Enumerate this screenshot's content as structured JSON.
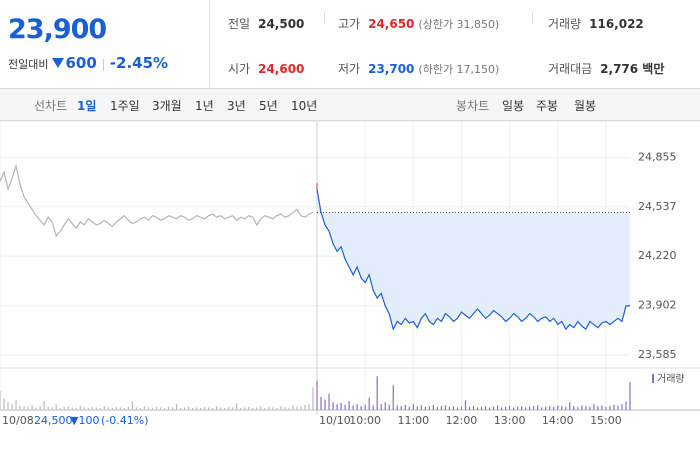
{
  "header": {
    "price": "23,900",
    "change_label": "전일대비",
    "change": "600",
    "change_pct": "-2.45%",
    "stats": [
      {
        "label": "전일",
        "value": "24,500"
      },
      {
        "label": "고가",
        "value": "24,650",
        "note": "(상한가 31,850)"
      },
      {
        "label": "거래량",
        "value": "116,022"
      },
      {
        "label": "시가",
        "value": "24,600"
      },
      {
        "label": "저가",
        "value": "23,700",
        "note": "(하한가 17,150)"
      },
      {
        "label": "거래대금",
        "value": "2,776 백만"
      }
    ]
  },
  "tabs": {
    "line_label": "선차트",
    "line": [
      "1일",
      "1주일",
      "3개월",
      "1년",
      "3년",
      "5년",
      "10년"
    ],
    "candle_label": "봉차트",
    "candle": [
      "일봉",
      "주봉",
      "월봉"
    ]
  },
  "chart_data": {
    "type": "line",
    "ylim": [
      23520,
      25050
    ],
    "yticks": [
      {
        "value": 24855,
        "label": "24,855"
      },
      {
        "value": 24537,
        "label": "24,537"
      },
      {
        "value": 24220,
        "label": "24,220"
      },
      {
        "value": 23902,
        "label": "23,902"
      },
      {
        "value": 23585,
        "label": "23,585"
      }
    ],
    "xlim": [
      0,
      157
    ],
    "xticks": [
      {
        "value": 0,
        "label": "10/08"
      },
      {
        "value": 79,
        "label": "10/10"
      },
      {
        "value": 91,
        "label": "10:00"
      },
      {
        "value": 103,
        "label": "11:00"
      },
      {
        "value": 115,
        "label": "12:00"
      },
      {
        "value": 127,
        "label": "13:00"
      },
      {
        "value": 139,
        "label": "14:00"
      },
      {
        "value": 151,
        "label": "15:00"
      }
    ],
    "reference": 24500,
    "prev_day": {
      "color": "#b4b4b4",
      "start": 0,
      "values": [
        24700,
        24760,
        24650,
        24720,
        24800,
        24680,
        24600,
        24560,
        24520,
        24480,
        24450,
        24420,
        24470,
        24440,
        24350,
        24380,
        24420,
        24460,
        24430,
        24400,
        24440,
        24420,
        24460,
        24440,
        24420,
        24430,
        24450,
        24430,
        24410,
        24440,
        24460,
        24480,
        24450,
        24430,
        24440,
        24460,
        24470,
        24450,
        24480,
        24470,
        24450,
        24460,
        24480,
        24470,
        24460,
        24480,
        24470,
        24450,
        24460,
        24480,
        24470,
        24460,
        24480,
        24490,
        24470,
        24480,
        24460,
        24470,
        24480,
        24450,
        24470,
        24460,
        24480,
        24470,
        24420,
        24460,
        24480,
        24470,
        24460,
        24480,
        24490,
        24470,
        24480,
        24500,
        24520,
        24480,
        24470,
        24490,
        24500
      ]
    },
    "today": {
      "color": "#1a5fd6",
      "fill": "#e4edfb",
      "start": 79,
      "values": [
        24650,
        24500,
        24420,
        24380,
        24300,
        24250,
        24280,
        24200,
        24150,
        24100,
        24150,
        24080,
        24050,
        24100,
        24000,
        23950,
        23980,
        23900,
        23850,
        23750,
        23800,
        23780,
        23820,
        23790,
        23800,
        23760,
        23820,
        23850,
        23800,
        23780,
        23820,
        23800,
        23850,
        23830,
        23800,
        23820,
        23860,
        23840,
        23820,
        23850,
        23880,
        23850,
        23820,
        23840,
        23870,
        23850,
        23830,
        23800,
        23820,
        23850,
        23830,
        23800,
        23820,
        23850,
        23830,
        23800,
        23820,
        23830,
        23800,
        23820,
        23780,
        23800,
        23750,
        23780,
        23760,
        23800,
        23770,
        23750,
        23800,
        23780,
        23760,
        23790,
        23800,
        23780,
        23800,
        23820,
        23800,
        23900,
        23900
      ]
    },
    "volume": {
      "name": "거래량",
      "color": "#8c6cc9",
      "prev_color": "#b9b9b9",
      "vlim": [
        0,
        6000
      ],
      "prev_day": [
        3000,
        1800,
        1200,
        900,
        1500,
        700,
        600,
        500,
        800,
        400,
        600,
        1400,
        500,
        400,
        900,
        300,
        500,
        600,
        400,
        300,
        700,
        400,
        300,
        500,
        400,
        300,
        600,
        400,
        300,
        500,
        400,
        300,
        500,
        1300,
        400,
        300,
        600,
        400,
        300,
        500,
        400,
        300,
        500,
        400,
        900,
        300,
        400,
        500,
        300,
        400,
        300,
        500,
        400,
        300,
        600,
        400,
        300,
        500,
        400,
        1100,
        300,
        400,
        500,
        300,
        400,
        600,
        300,
        500,
        400,
        300,
        600,
        500,
        400,
        700,
        500,
        600,
        800,
        900,
        3500
      ],
      "today": [
        4500,
        2000,
        1600,
        2500,
        1200,
        900,
        1100,
        800,
        1400,
        700,
        900,
        600,
        800,
        1900,
        700,
        5200,
        900,
        1200,
        800,
        3800,
        700,
        600,
        800,
        500,
        900,
        600,
        700,
        500,
        600,
        800,
        500,
        600,
        700,
        500,
        600,
        400,
        500,
        1500,
        500,
        600,
        400,
        500,
        600,
        400,
        500,
        700,
        400,
        500,
        600,
        400,
        500,
        600,
        400,
        500,
        600,
        700,
        400,
        500,
        600,
        500,
        700,
        600,
        500,
        1200,
        600,
        500,
        700,
        600,
        500,
        900,
        600,
        700,
        500,
        600,
        800,
        700,
        900,
        1300,
        4300
      ]
    },
    "summary": {
      "date": "10/08",
      "price": "24,500",
      "change": "▼100",
      "pct": "(-0.41%)"
    }
  }
}
